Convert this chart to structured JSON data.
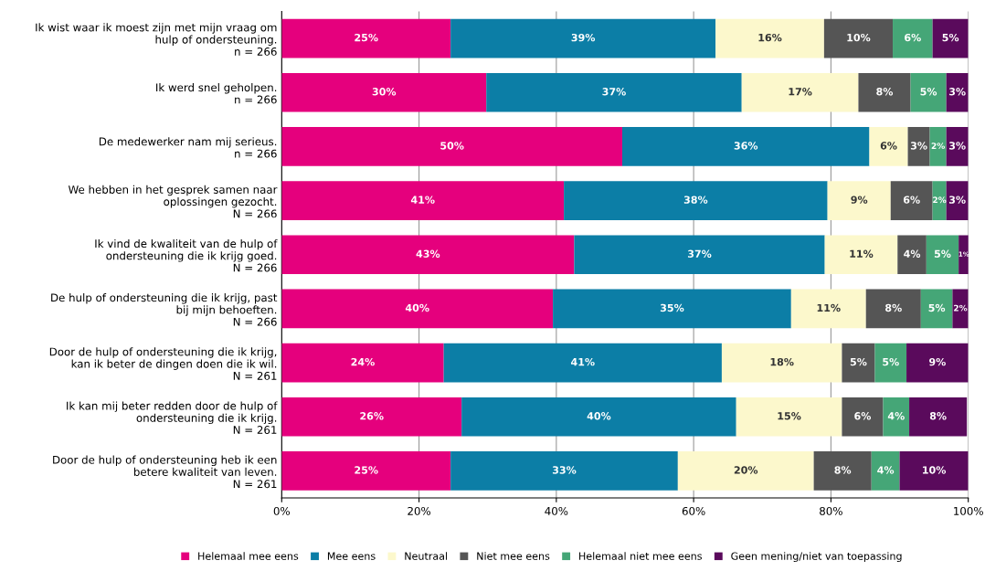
{
  "chart_data": {
    "type": "bar",
    "orientation": "horizontal",
    "stacked": true,
    "categories": [
      "Ik wist waar ik moest zijn met mijn vraag om\nhulp of ondersteuning.\nn = 266",
      "Ik werd snel geholpen.\nn = 266",
      "De medewerker nam mij serieus.\nn = 266",
      "We hebben in het gesprek samen naar\noplossingen gezocht.\nN = 266",
      "Ik vind de kwaliteit van de hulp of\nondersteuning die ik krijg goed.\nN = 266",
      "De hulp of ondersteuning die ik krijg, past\nbij mijn behoeften.\nN = 266",
      "Door de hulp of ondersteuning die ik krijg,\nkan ik beter de dingen doen die ik wil.\nN = 261",
      "Ik kan mij beter redden door de hulp of\nondersteuning die ik krijg.\nN = 261",
      "Door de hulp of ondersteuning heb ik een\nbetere kwaliteit van leven.\nN = 261"
    ],
    "series": [
      {
        "name": "Helemaal mee eens",
        "color": "#e5007d",
        "values": [
          24.6,
          29.8,
          49.6,
          41.1,
          42.6,
          39.5,
          23.6,
          26.2,
          24.6
        ],
        "value_labels": [
          "25%",
          "30%",
          "50%",
          "41%",
          "43%",
          "40%",
          "24%",
          "26%",
          "25%"
        ]
      },
      {
        "name": "Mee eens",
        "color": "#0c7ea6",
        "values": [
          38.6,
          37.2,
          36.0,
          38.4,
          36.5,
          34.7,
          40.5,
          40.0,
          33.1
        ],
        "value_labels": [
          "39%",
          "37%",
          "36%",
          "38%",
          "37%",
          "35%",
          "41%",
          "40%",
          "33%"
        ]
      },
      {
        "name": "Neutraal",
        "color": "#fcf8cc",
        "values": [
          15.8,
          17.0,
          5.6,
          9.2,
          10.6,
          10.9,
          17.5,
          15.4,
          19.8
        ],
        "value_labels": [
          "16%",
          "17%",
          "6%",
          "9%",
          "11%",
          "11%",
          "18%",
          "15%",
          "20%"
        ]
      },
      {
        "name": "Niet mee eens",
        "color": "#555555",
        "values": [
          10.0,
          7.6,
          3.2,
          6.1,
          4.2,
          8.0,
          4.8,
          6.0,
          8.4
        ],
        "value_labels": [
          "10%",
          "8%",
          "3%",
          "6%",
          "4%",
          "8%",
          "5%",
          "6%",
          "8%"
        ]
      },
      {
        "name": "Helemaal niet mee eens",
        "color": "#45a677",
        "values": [
          5.8,
          5.2,
          2.4,
          2.0,
          4.7,
          4.6,
          4.6,
          3.8,
          4.1
        ],
        "value_labels": [
          "6%",
          "5%",
          "2%",
          "2%",
          "5%",
          "5%",
          "5%",
          "4%",
          "4%"
        ]
      },
      {
        "name": "Geen mening/niet van toepassing",
        "color": "#5a0a5c",
        "values": [
          5.2,
          3.2,
          3.2,
          3.2,
          1.5,
          2.3,
          9.0,
          8.4,
          10.0
        ],
        "value_labels": [
          "5%",
          "3%",
          "3%",
          "3%",
          "1%",
          "2%",
          "9%",
          "8%",
          "10%"
        ]
      }
    ],
    "xlim": [
      0,
      100
    ],
    "xticks": [
      {
        "value": 0,
        "label": "0%"
      },
      {
        "value": 20,
        "label": "20%"
      },
      {
        "value": 40,
        "label": "40%"
      },
      {
        "value": 60,
        "label": "60%"
      },
      {
        "value": 80,
        "label": "80%"
      },
      {
        "value": 100,
        "label": "100%"
      }
    ],
    "grid": "x",
    "legend": "bottom"
  }
}
